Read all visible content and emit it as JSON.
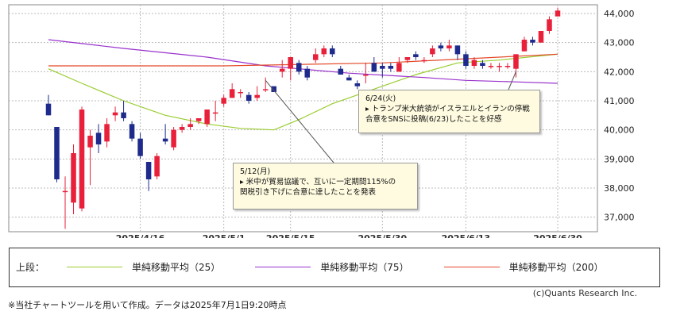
{
  "chart_data": {
    "type": "candlestick",
    "y_axis": {
      "range": [
        36500,
        44300
      ],
      "ticks": [
        37000,
        38000,
        39000,
        40000,
        41000,
        42000,
        43000,
        44000
      ],
      "tick_labels": [
        "37,000",
        "38,000",
        "39,000",
        "40,000",
        "41,000",
        "42,000",
        "43,000",
        "44,000"
      ]
    },
    "x_axis": {
      "ticks": [
        {
          "date": "2025-04-16",
          "label": "2025/4/16"
        },
        {
          "date": "2025-05-01",
          "label": "2025/5/1"
        },
        {
          "date": "2025-05-15",
          "label": "2025/5/15"
        },
        {
          "date": "2025-05-30",
          "label": "2025/5/30"
        },
        {
          "date": "2025-06-13",
          "label": "2025/6/13"
        },
        {
          "date": "2025-06-30",
          "label": "2025/6/30"
        }
      ]
    },
    "grid": true,
    "candles": [
      {
        "date": "2025-04-01",
        "open": 40900,
        "high": 41200,
        "low": 40500,
        "close": 40500
      },
      {
        "date": "2025-04-02",
        "open": 40100,
        "high": 40100,
        "low": 38200,
        "close": 38300
      },
      {
        "date": "2025-04-03",
        "open": 37900,
        "high": 38400,
        "low": 36600,
        "close": 37900
      },
      {
        "date": "2025-04-04",
        "open": 37500,
        "high": 39500,
        "low": 37100,
        "close": 39200
      },
      {
        "date": "2025-04-07",
        "open": 37300,
        "high": 40800,
        "low": 37200,
        "close": 40700
      },
      {
        "date": "2025-04-08",
        "open": 39400,
        "high": 40000,
        "low": 38100,
        "close": 39800
      },
      {
        "date": "2025-04-09",
        "open": 39900,
        "high": 40200,
        "low": 39200,
        "close": 39500
      },
      {
        "date": "2025-04-10",
        "open": 39600,
        "high": 40400,
        "low": 39400,
        "close": 40200
      },
      {
        "date": "2025-04-11",
        "open": 40500,
        "high": 40800,
        "low": 40300,
        "close": 40600
      },
      {
        "date": "2025-04-14",
        "open": 40600,
        "high": 41000,
        "low": 40300,
        "close": 40400
      },
      {
        "date": "2025-04-15",
        "open": 40200,
        "high": 40300,
        "low": 39600,
        "close": 39700
      },
      {
        "date": "2025-04-16",
        "open": 39700,
        "high": 39900,
        "low": 39000,
        "close": 39100
      },
      {
        "date": "2025-04-17",
        "open": 38900,
        "high": 38900,
        "low": 37900,
        "close": 38300
      },
      {
        "date": "2025-04-18",
        "open": 38400,
        "high": 39200,
        "low": 38300,
        "close": 39100
      },
      {
        "date": "2025-04-21",
        "open": 39700,
        "high": 40200,
        "low": 39500,
        "close": 39600
      },
      {
        "date": "2025-04-22",
        "open": 39400,
        "high": 40100,
        "low": 39300,
        "close": 40000
      },
      {
        "date": "2025-04-23",
        "open": 40000,
        "high": 40200,
        "low": 39900,
        "close": 40100
      },
      {
        "date": "2025-04-24",
        "open": 40100,
        "high": 40400,
        "low": 40000,
        "close": 40200
      },
      {
        "date": "2025-04-25",
        "open": 40300,
        "high": 40400,
        "low": 40200,
        "close": 40400
      },
      {
        "date": "2025-04-28",
        "open": 40200,
        "high": 40700,
        "low": 40100,
        "close": 40700
      },
      {
        "date": "2025-04-30",
        "open": 40600,
        "high": 41000,
        "low": 40300,
        "close": 40600
      },
      {
        "date": "2025-05-01",
        "open": 40900,
        "high": 41200,
        "low": 40800,
        "close": 41100
      },
      {
        "date": "2025-05-02",
        "open": 41100,
        "high": 41600,
        "low": 41100,
        "close": 41400
      },
      {
        "date": "2025-05-07",
        "open": 41300,
        "high": 41400,
        "low": 41100,
        "close": 41300
      },
      {
        "date": "2025-05-08",
        "open": 41200,
        "high": 41300,
        "low": 40900,
        "close": 41000
      },
      {
        "date": "2025-05-09",
        "open": 41100,
        "high": 41500,
        "low": 41000,
        "close": 41200
      },
      {
        "date": "2025-05-12",
        "open": 41400,
        "high": 41800,
        "low": 41300,
        "close": 41400
      },
      {
        "date": "2025-05-13",
        "open": 41500,
        "high": 41500,
        "low": 41300,
        "close": 41300
      },
      {
        "date": "2025-05-14",
        "open": 42000,
        "high": 42400,
        "low": 41800,
        "close": 42100
      },
      {
        "date": "2025-05-15",
        "open": 42100,
        "high": 42500,
        "low": 41700,
        "close": 42500
      },
      {
        "date": "2025-05-16",
        "open": 42300,
        "high": 42400,
        "low": 41900,
        "close": 42000
      },
      {
        "date": "2025-05-19",
        "open": 42100,
        "high": 42200,
        "low": 41700,
        "close": 41800
      },
      {
        "date": "2025-05-20",
        "open": 42400,
        "high": 42800,
        "low": 42300,
        "close": 42600
      },
      {
        "date": "2025-05-21",
        "open": 42600,
        "high": 42900,
        "low": 42500,
        "close": 42800
      },
      {
        "date": "2025-05-22",
        "open": 42800,
        "high": 42900,
        "low": 42500,
        "close": 42600
      },
      {
        "date": "2025-05-23",
        "open": 42100,
        "high": 42200,
        "low": 41900,
        "close": 41900
      },
      {
        "date": "2025-05-26",
        "open": 41800,
        "high": 41900,
        "low": 41700,
        "close": 41700
      },
      {
        "date": "2025-05-27",
        "open": 41600,
        "high": 41700,
        "low": 41400,
        "close": 41500
      },
      {
        "date": "2025-05-28",
        "open": 41900,
        "high": 42300,
        "low": 41600,
        "close": 41900
      },
      {
        "date": "2025-05-29",
        "open": 42300,
        "high": 42500,
        "low": 42000,
        "close": 42000
      },
      {
        "date": "2025-05-30",
        "open": 42200,
        "high": 42300,
        "low": 41800,
        "close": 42100
      },
      {
        "date": "2025-06-02",
        "open": 42200,
        "high": 42300,
        "low": 42000,
        "close": 42100
      },
      {
        "date": "2025-06-03",
        "open": 42000,
        "high": 42500,
        "low": 42000,
        "close": 42300
      },
      {
        "date": "2025-06-04",
        "open": 42400,
        "high": 42500,
        "low": 42300,
        "close": 42500
      },
      {
        "date": "2025-06-05",
        "open": 42600,
        "high": 42700,
        "low": 42400,
        "close": 42500
      },
      {
        "date": "2025-06-06",
        "open": 42400,
        "high": 42500,
        "low": 42300,
        "close": 42400
      },
      {
        "date": "2025-06-09",
        "open": 42600,
        "high": 42900,
        "low": 42500,
        "close": 42800
      },
      {
        "date": "2025-06-10",
        "open": 42900,
        "high": 43000,
        "low": 42700,
        "close": 42800
      },
      {
        "date": "2025-06-11",
        "open": 42800,
        "high": 43100,
        "low": 42700,
        "close": 42900
      },
      {
        "date": "2025-06-12",
        "open": 42900,
        "high": 42900,
        "low": 42400,
        "close": 42600
      },
      {
        "date": "2025-06-13",
        "open": 42600,
        "high": 42700,
        "low": 42100,
        "close": 42200
      },
      {
        "date": "2025-06-16",
        "open": 42200,
        "high": 42500,
        "low": 42100,
        "close": 42400
      },
      {
        "date": "2025-06-17",
        "open": 42300,
        "high": 42400,
        "low": 42100,
        "close": 42200
      },
      {
        "date": "2025-06-18",
        "open": 42200,
        "high": 42300,
        "low": 42100,
        "close": 42200
      },
      {
        "date": "2025-06-19",
        "open": 42200,
        "high": 42300,
        "low": 42000,
        "close": 42200
      },
      {
        "date": "2025-06-20",
        "open": 42200,
        "high": 42300,
        "low": 42100,
        "close": 42200
      },
      {
        "date": "2025-06-23",
        "open": 42100,
        "high": 42600,
        "low": 41800,
        "close": 42600
      },
      {
        "date": "2025-06-24",
        "open": 42700,
        "high": 43200,
        "low": 42700,
        "close": 43100
      },
      {
        "date": "2025-06-25",
        "open": 43100,
        "high": 43200,
        "low": 42900,
        "close": 43000
      },
      {
        "date": "2025-06-26",
        "open": 43000,
        "high": 43400,
        "low": 43000,
        "close": 43400
      },
      {
        "date": "2025-06-27",
        "open": 43400,
        "high": 43900,
        "low": 43300,
        "close": 43800
      },
      {
        "date": "2025-06-30",
        "open": 43900,
        "high": 44200,
        "low": 43900,
        "close": 44100
      }
    ],
    "series": [
      {
        "name": "単純移動平均（25）",
        "color": "#9acd32",
        "points": [
          {
            "date": "2025-04-01",
            "value": 42100
          },
          {
            "date": "2025-04-07",
            "value": 41600
          },
          {
            "date": "2025-04-14",
            "value": 41000
          },
          {
            "date": "2025-04-21",
            "value": 40500
          },
          {
            "date": "2025-04-28",
            "value": 40200
          },
          {
            "date": "2025-05-07",
            "value": 40050
          },
          {
            "date": "2025-05-13",
            "value": 40000
          },
          {
            "date": "2025-05-16",
            "value": 40350
          },
          {
            "date": "2025-05-22",
            "value": 40900
          },
          {
            "date": "2025-05-29",
            "value": 41400
          },
          {
            "date": "2025-06-05",
            "value": 41900
          },
          {
            "date": "2025-06-12",
            "value": 42300
          },
          {
            "date": "2025-06-19",
            "value": 42400
          },
          {
            "date": "2025-06-30",
            "value": 42600
          }
        ]
      },
      {
        "name": "単純移動平均（75）",
        "color": "#9932cc",
        "points": [
          {
            "date": "2025-04-01",
            "value": 43100
          },
          {
            "date": "2025-04-14",
            "value": 42800
          },
          {
            "date": "2025-04-28",
            "value": 42500
          },
          {
            "date": "2025-05-12",
            "value": 42200
          },
          {
            "date": "2025-05-26",
            "value": 41950
          },
          {
            "date": "2025-06-06",
            "value": 41800
          },
          {
            "date": "2025-06-13",
            "value": 41700
          },
          {
            "date": "2025-06-23",
            "value": 41650
          },
          {
            "date": "2025-06-30",
            "value": 41600
          }
        ]
      },
      {
        "name": "単純移動平均（200）",
        "color": "#e34a2a",
        "points": [
          {
            "date": "2025-04-01",
            "value": 42200
          },
          {
            "date": "2025-05-01",
            "value": 42200
          },
          {
            "date": "2025-05-30",
            "value": 42300
          },
          {
            "date": "2025-06-30",
            "value": 42600
          }
        ]
      }
    ],
    "annotations": [
      {
        "id": "may12",
        "title": "5/12(月)",
        "line1": "▸ 米中が貿易協議で、互いに一定期間115%の",
        "line2": "関税引き下げに合意に達したことを発表",
        "anchor_date": "2025-05-12",
        "anchor_value": 41700
      },
      {
        "id": "jun24",
        "title": "6/24(火)",
        "line1": "▸ トランプ米大統領がイスラエルとイランの停戦",
        "line2": "合意をSNSに投稿(6/23)したことを好感",
        "anchor_date": "2025-06-23",
        "anchor_value": 42000
      }
    ],
    "colors": {
      "up": "#e8203a",
      "down": "#1e2b8c",
      "grid": "#bbbbbb"
    }
  },
  "legend": {
    "prefix": "上段：",
    "items": [
      {
        "label": "単純移動平均（25）",
        "color": "#9acd32"
      },
      {
        "label": "単純移動平均（75）",
        "color": "#9932cc"
      },
      {
        "label": "単純移動平均（200）",
        "color": "#e34a2a"
      }
    ]
  },
  "copyright": "(c)Quants Research Inc.",
  "footer_note": "※当社チャートツールを用いて作成。データは2025年7月1日9:20時点"
}
